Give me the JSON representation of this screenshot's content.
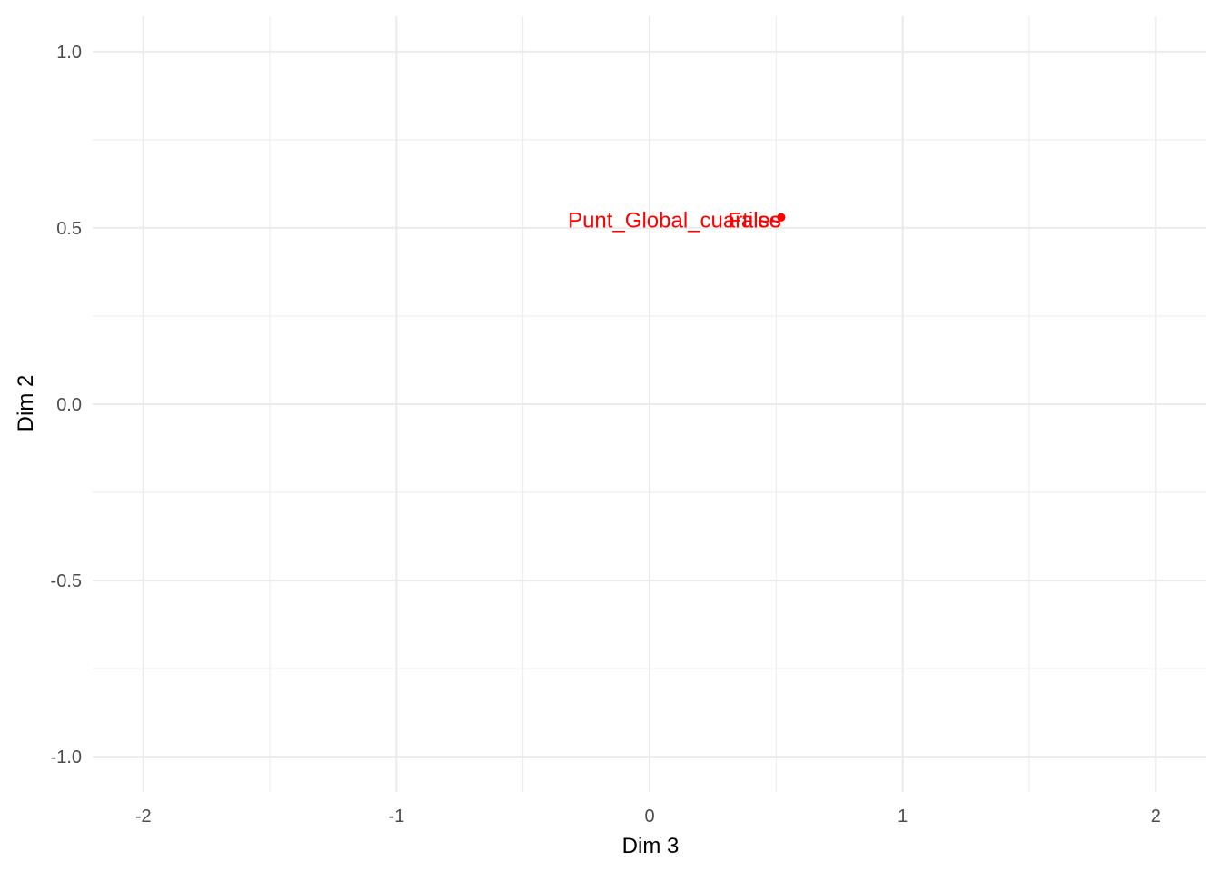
{
  "chart_data": {
    "type": "scatter",
    "xlabel": "Dim 3",
    "ylabel": "Dim 2",
    "xlim": [
      -2.2,
      2.2
    ],
    "ylim": [
      -1.1,
      1.1
    ],
    "x_ticks": [
      -2,
      -1,
      0,
      1,
      2
    ],
    "y_ticks": [
      -1.0,
      -0.5,
      0.0,
      0.5,
      1.0
    ],
    "x_tick_labels": [
      "-2",
      "-1",
      "0",
      "1",
      "2"
    ],
    "y_tick_labels": [
      "-1.0",
      "-0.5",
      "0.0",
      "0.5",
      "1.0"
    ],
    "grid": true,
    "color": "#ff0000",
    "points": [
      {
        "label": "Punt_Global_cuartiles",
        "x": 0.52,
        "y": 0.53
      },
      {
        "label": "False",
        "x": 0.52,
        "y": 0.53
      }
    ]
  }
}
